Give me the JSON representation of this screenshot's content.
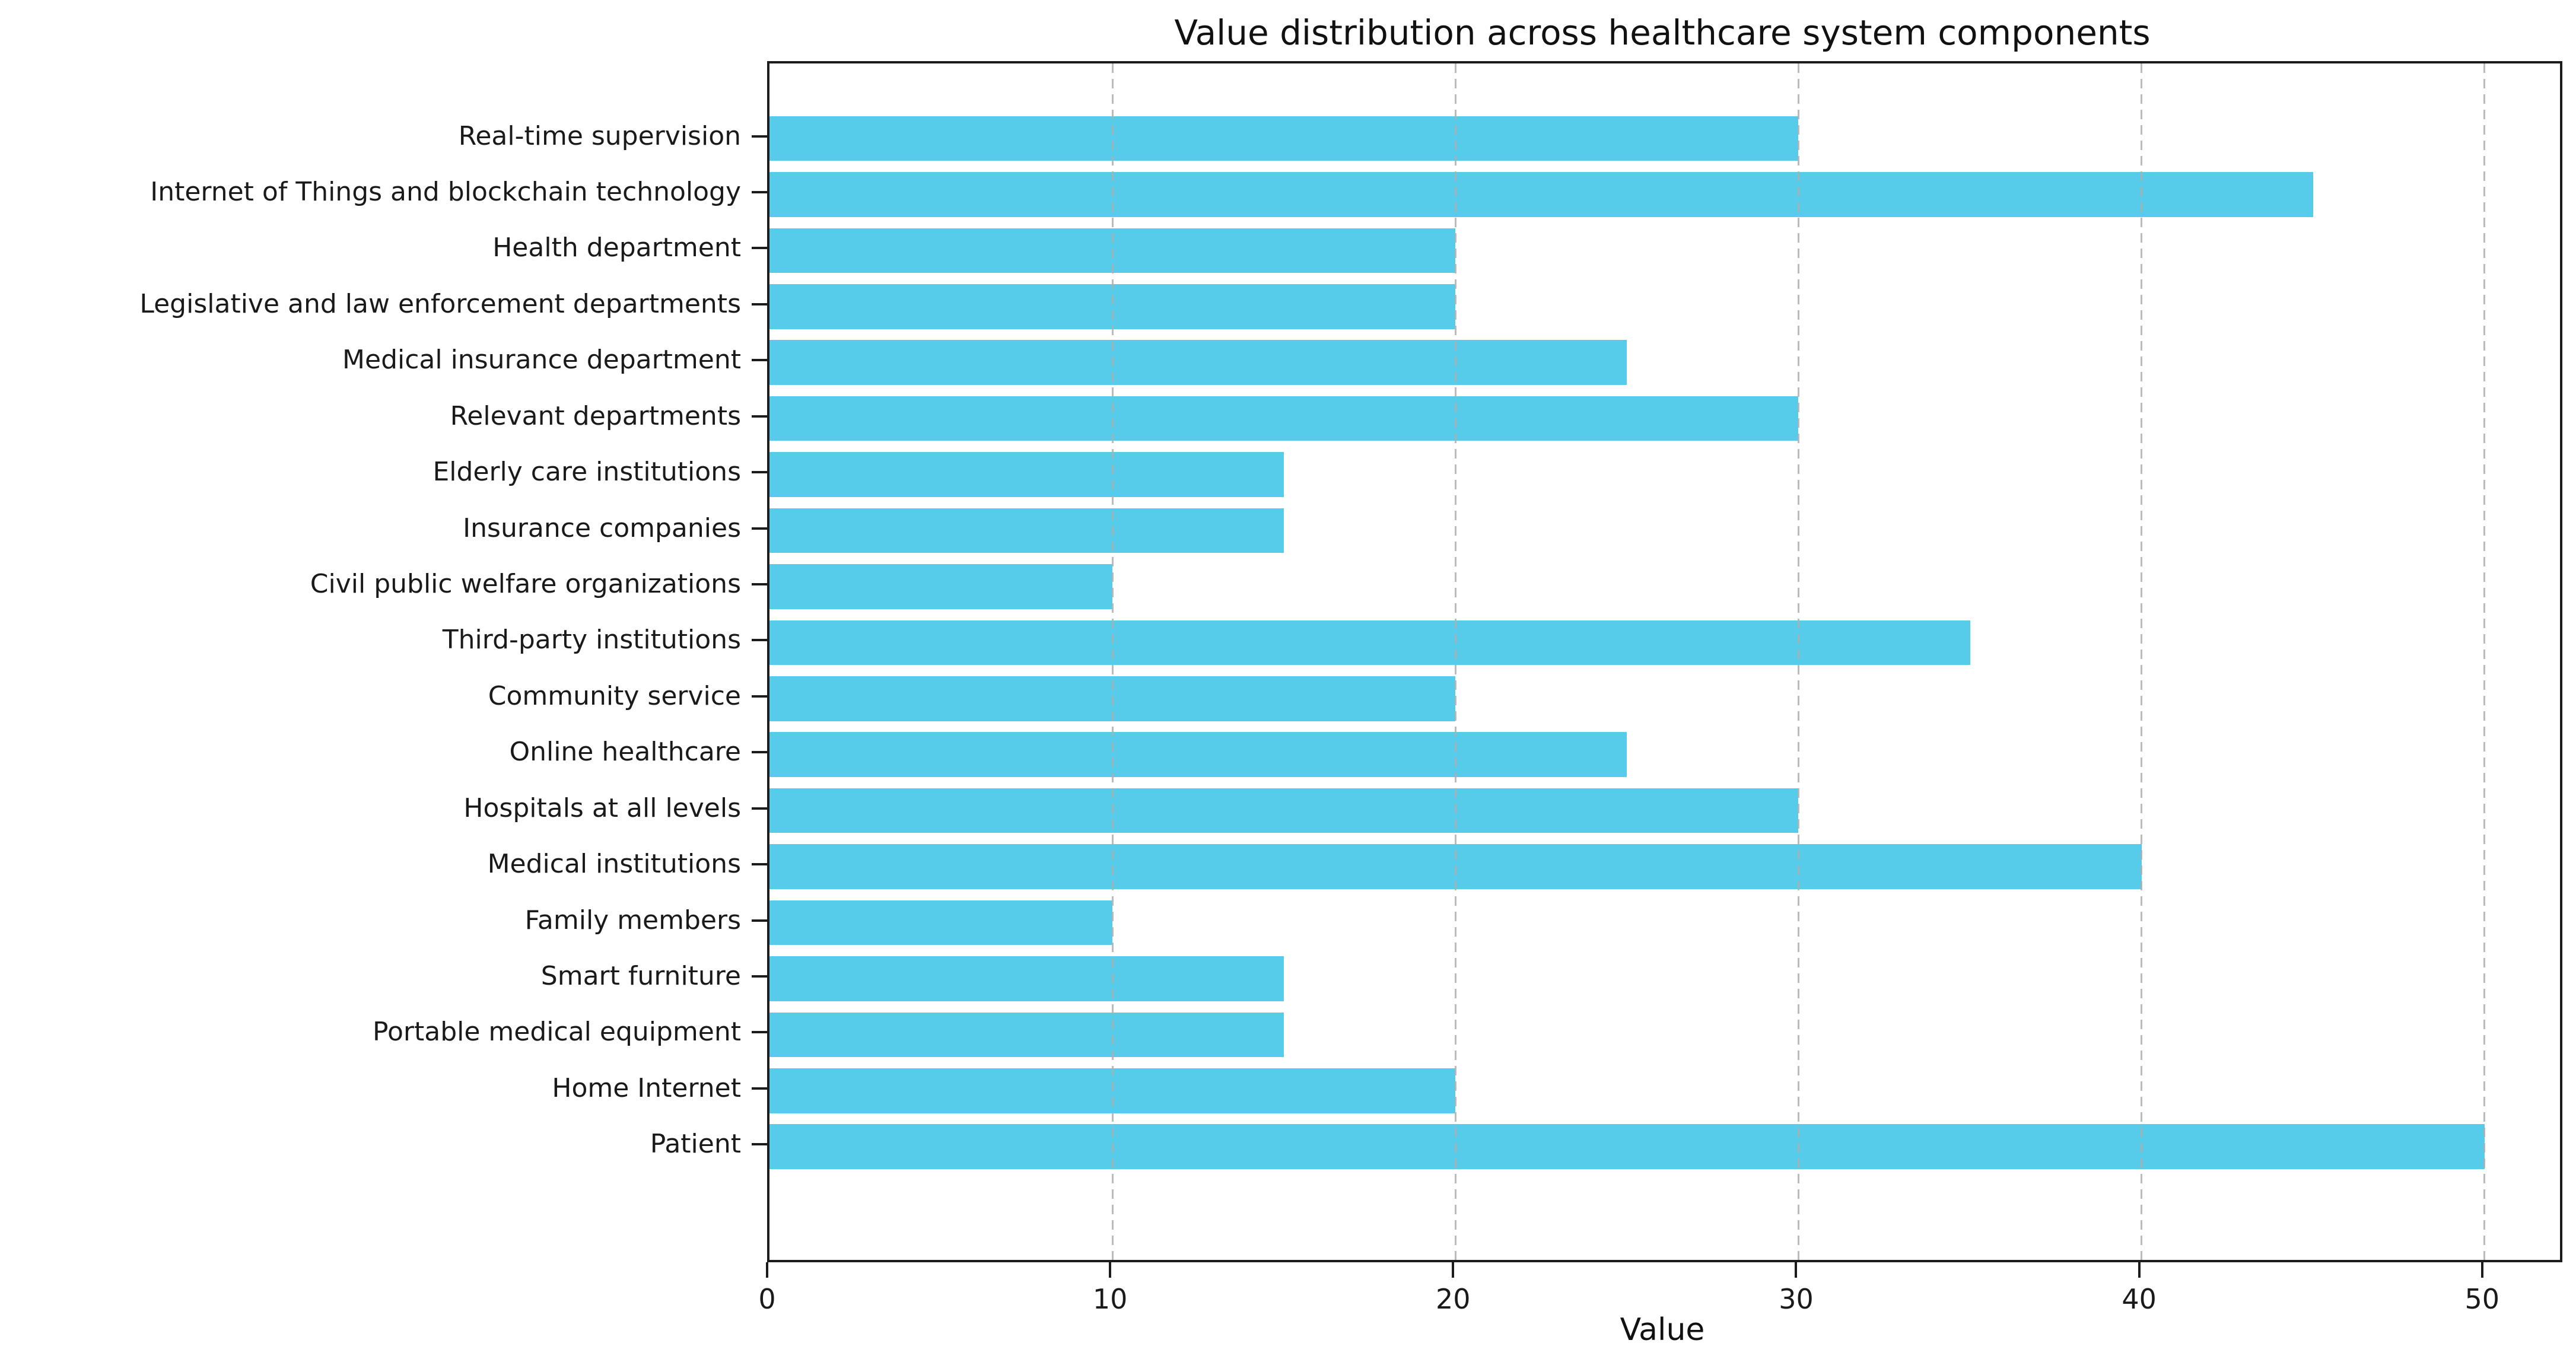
{
  "chart_data": {
    "type": "bar",
    "orientation": "horizontal",
    "title": "Value distribution across healthcare system components",
    "xlabel": "Value",
    "ylabel": "",
    "categories": [
      "Real-time supervision",
      "Internet of Things and blockchain technology",
      "Health department",
      "Legislative and law enforcement departments",
      "Medical insurance department",
      "Relevant departments",
      "Elderly care institutions",
      "Insurance companies",
      "Civil public welfare organizations",
      "Third-party institutions",
      "Community service",
      "Online healthcare",
      "Hospitals at all levels",
      "Medical institutions",
      "Family members",
      "Smart furniture",
      "Portable medical equipment",
      "Home Internet",
      "Patient"
    ],
    "values": [
      30,
      45,
      20,
      20,
      25,
      30,
      15,
      15,
      10,
      35,
      20,
      25,
      30,
      40,
      10,
      15,
      15,
      20,
      50
    ],
    "x_ticks": [
      0,
      10,
      20,
      30,
      40,
      50
    ],
    "xlim": [
      0,
      52.2
    ],
    "grid": "vertical-dashed-over-bars",
    "legend": "none"
  },
  "colors": {
    "bar": "#56CBEA",
    "spine": "#1c1c1c",
    "grid": "#afafaf",
    "text": "#1a1a1a",
    "background": "#ffffff"
  }
}
